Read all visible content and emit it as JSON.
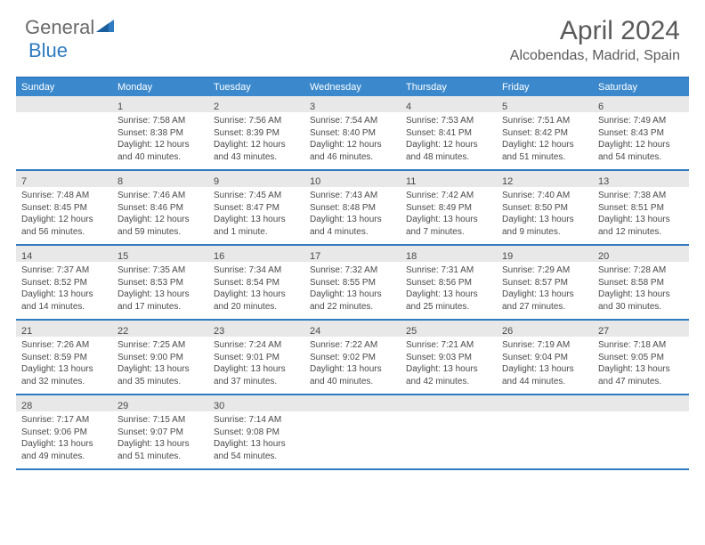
{
  "brand": {
    "name_part1": "General",
    "name_part2": "Blue"
  },
  "title": "April 2024",
  "location": "Alcobendas, Madrid, Spain",
  "colors": {
    "header_bar": "#3b89cc",
    "rule": "#2f7ac0",
    "daynum_bg": "#e8e8e8",
    "text": "#4a4a4a",
    "logo_gray": "#6a6a6a",
    "logo_blue": "#2f7ac0",
    "background": "#ffffff"
  },
  "days_of_week": [
    "Sunday",
    "Monday",
    "Tuesday",
    "Wednesday",
    "Thursday",
    "Friday",
    "Saturday"
  ],
  "weeks": [
    [
      {
        "n": "",
        "sr": "",
        "ss": "",
        "dl": ""
      },
      {
        "n": "1",
        "sr": "Sunrise: 7:58 AM",
        "ss": "Sunset: 8:38 PM",
        "dl": "Daylight: 12 hours and 40 minutes."
      },
      {
        "n": "2",
        "sr": "Sunrise: 7:56 AM",
        "ss": "Sunset: 8:39 PM",
        "dl": "Daylight: 12 hours and 43 minutes."
      },
      {
        "n": "3",
        "sr": "Sunrise: 7:54 AM",
        "ss": "Sunset: 8:40 PM",
        "dl": "Daylight: 12 hours and 46 minutes."
      },
      {
        "n": "4",
        "sr": "Sunrise: 7:53 AM",
        "ss": "Sunset: 8:41 PM",
        "dl": "Daylight: 12 hours and 48 minutes."
      },
      {
        "n": "5",
        "sr": "Sunrise: 7:51 AM",
        "ss": "Sunset: 8:42 PM",
        "dl": "Daylight: 12 hours and 51 minutes."
      },
      {
        "n": "6",
        "sr": "Sunrise: 7:49 AM",
        "ss": "Sunset: 8:43 PM",
        "dl": "Daylight: 12 hours and 54 minutes."
      }
    ],
    [
      {
        "n": "7",
        "sr": "Sunrise: 7:48 AM",
        "ss": "Sunset: 8:45 PM",
        "dl": "Daylight: 12 hours and 56 minutes."
      },
      {
        "n": "8",
        "sr": "Sunrise: 7:46 AM",
        "ss": "Sunset: 8:46 PM",
        "dl": "Daylight: 12 hours and 59 minutes."
      },
      {
        "n": "9",
        "sr": "Sunrise: 7:45 AM",
        "ss": "Sunset: 8:47 PM",
        "dl": "Daylight: 13 hours and 1 minute."
      },
      {
        "n": "10",
        "sr": "Sunrise: 7:43 AM",
        "ss": "Sunset: 8:48 PM",
        "dl": "Daylight: 13 hours and 4 minutes."
      },
      {
        "n": "11",
        "sr": "Sunrise: 7:42 AM",
        "ss": "Sunset: 8:49 PM",
        "dl": "Daylight: 13 hours and 7 minutes."
      },
      {
        "n": "12",
        "sr": "Sunrise: 7:40 AM",
        "ss": "Sunset: 8:50 PM",
        "dl": "Daylight: 13 hours and 9 minutes."
      },
      {
        "n": "13",
        "sr": "Sunrise: 7:38 AM",
        "ss": "Sunset: 8:51 PM",
        "dl": "Daylight: 13 hours and 12 minutes."
      }
    ],
    [
      {
        "n": "14",
        "sr": "Sunrise: 7:37 AM",
        "ss": "Sunset: 8:52 PM",
        "dl": "Daylight: 13 hours and 14 minutes."
      },
      {
        "n": "15",
        "sr": "Sunrise: 7:35 AM",
        "ss": "Sunset: 8:53 PM",
        "dl": "Daylight: 13 hours and 17 minutes."
      },
      {
        "n": "16",
        "sr": "Sunrise: 7:34 AM",
        "ss": "Sunset: 8:54 PM",
        "dl": "Daylight: 13 hours and 20 minutes."
      },
      {
        "n": "17",
        "sr": "Sunrise: 7:32 AM",
        "ss": "Sunset: 8:55 PM",
        "dl": "Daylight: 13 hours and 22 minutes."
      },
      {
        "n": "18",
        "sr": "Sunrise: 7:31 AM",
        "ss": "Sunset: 8:56 PM",
        "dl": "Daylight: 13 hours and 25 minutes."
      },
      {
        "n": "19",
        "sr": "Sunrise: 7:29 AM",
        "ss": "Sunset: 8:57 PM",
        "dl": "Daylight: 13 hours and 27 minutes."
      },
      {
        "n": "20",
        "sr": "Sunrise: 7:28 AM",
        "ss": "Sunset: 8:58 PM",
        "dl": "Daylight: 13 hours and 30 minutes."
      }
    ],
    [
      {
        "n": "21",
        "sr": "Sunrise: 7:26 AM",
        "ss": "Sunset: 8:59 PM",
        "dl": "Daylight: 13 hours and 32 minutes."
      },
      {
        "n": "22",
        "sr": "Sunrise: 7:25 AM",
        "ss": "Sunset: 9:00 PM",
        "dl": "Daylight: 13 hours and 35 minutes."
      },
      {
        "n": "23",
        "sr": "Sunrise: 7:24 AM",
        "ss": "Sunset: 9:01 PM",
        "dl": "Daylight: 13 hours and 37 minutes."
      },
      {
        "n": "24",
        "sr": "Sunrise: 7:22 AM",
        "ss": "Sunset: 9:02 PM",
        "dl": "Daylight: 13 hours and 40 minutes."
      },
      {
        "n": "25",
        "sr": "Sunrise: 7:21 AM",
        "ss": "Sunset: 9:03 PM",
        "dl": "Daylight: 13 hours and 42 minutes."
      },
      {
        "n": "26",
        "sr": "Sunrise: 7:19 AM",
        "ss": "Sunset: 9:04 PM",
        "dl": "Daylight: 13 hours and 44 minutes."
      },
      {
        "n": "27",
        "sr": "Sunrise: 7:18 AM",
        "ss": "Sunset: 9:05 PM",
        "dl": "Daylight: 13 hours and 47 minutes."
      }
    ],
    [
      {
        "n": "28",
        "sr": "Sunrise: 7:17 AM",
        "ss": "Sunset: 9:06 PM",
        "dl": "Daylight: 13 hours and 49 minutes."
      },
      {
        "n": "29",
        "sr": "Sunrise: 7:15 AM",
        "ss": "Sunset: 9:07 PM",
        "dl": "Daylight: 13 hours and 51 minutes."
      },
      {
        "n": "30",
        "sr": "Sunrise: 7:14 AM",
        "ss": "Sunset: 9:08 PM",
        "dl": "Daylight: 13 hours and 54 minutes."
      },
      {
        "n": "",
        "sr": "",
        "ss": "",
        "dl": ""
      },
      {
        "n": "",
        "sr": "",
        "ss": "",
        "dl": ""
      },
      {
        "n": "",
        "sr": "",
        "ss": "",
        "dl": ""
      },
      {
        "n": "",
        "sr": "",
        "ss": "",
        "dl": ""
      }
    ]
  ]
}
